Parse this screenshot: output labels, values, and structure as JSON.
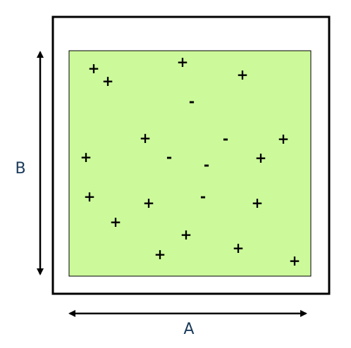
{
  "diagram": {
    "labels": {
      "width_label": "A",
      "height_label": "B"
    },
    "colors": {
      "fill": "#ccfa9a",
      "stroke": "#000000",
      "label": "#1a3a5a"
    },
    "charges": [
      {
        "sign": "+"
      },
      {
        "sign": "+"
      },
      {
        "sign": "+"
      },
      {
        "sign": "+"
      },
      {
        "sign": "-"
      },
      {
        "sign": "+"
      },
      {
        "sign": "-"
      },
      {
        "sign": "+"
      },
      {
        "sign": "+"
      },
      {
        "sign": "-"
      },
      {
        "sign": "-"
      },
      {
        "sign": "+"
      },
      {
        "sign": "+"
      },
      {
        "sign": "+"
      },
      {
        "sign": "-"
      },
      {
        "sign": "+"
      },
      {
        "sign": "+"
      },
      {
        "sign": "+"
      },
      {
        "sign": "+"
      },
      {
        "sign": "+"
      },
      {
        "sign": "+"
      }
    ]
  }
}
